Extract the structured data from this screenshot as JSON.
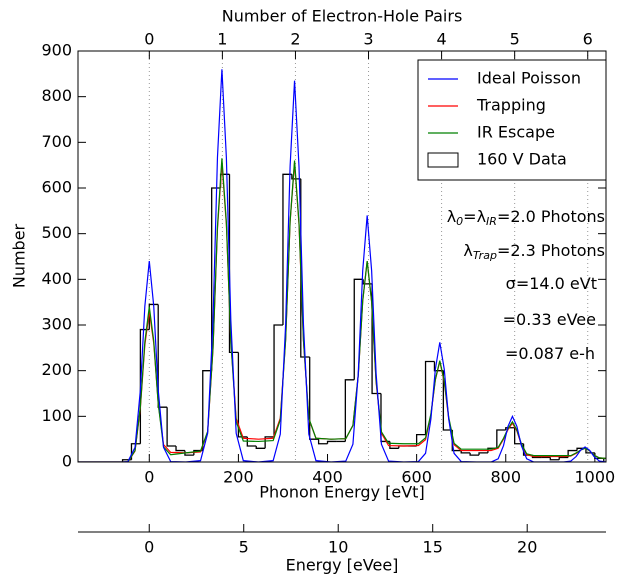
{
  "chart_data": {
    "type": "line",
    "xlabel": "Phonon Energy [eVt]",
    "ylabel": "Number",
    "xlim": [
      -160,
      1025
    ],
    "xticks": [
      0,
      200,
      400,
      600,
      800,
      1000
    ],
    "ylim": [
      0,
      900
    ],
    "yticks": [
      0,
      100,
      200,
      300,
      400,
      500,
      600,
      700,
      800,
      900
    ],
    "x2label": "Number of Electron-Hole Pairs",
    "x2lim": [
      -0.976,
      6.25
    ],
    "x2ticks": [
      0,
      1,
      2,
      3,
      4,
      5,
      6
    ],
    "x2grid": true,
    "x3label": "Energy [eVee]",
    "x3lim": [
      -3.77,
      24.17
    ],
    "x3ticks": [
      0,
      5,
      10,
      15,
      20
    ],
    "legend": "upper right",
    "x": [
      -160,
      -60,
      -48,
      -32,
      -20,
      -10,
      0,
      10,
      20,
      32,
      48,
      82,
      115,
      131,
      143,
      153,
      163,
      173,
      183,
      195,
      211,
      245,
      278,
      294,
      306,
      316,
      326,
      336,
      346,
      358,
      374,
      408,
      441,
      457,
      469,
      479,
      489,
      499,
      509,
      521,
      537,
      571,
      604,
      620,
      632,
      642,
      652,
      662,
      672,
      684,
      700,
      734,
      767,
      783,
      795,
      805,
      815,
      825,
      835,
      847,
      863,
      897,
      930,
      946,
      958,
      968,
      978,
      988,
      998,
      1010,
      1025
    ],
    "series": [
      {
        "name": "Ideal Poisson",
        "color": "#0000ff",
        "values": [
          0,
          0,
          1,
          32,
          158,
          341,
          440,
          341,
          158,
          32,
          1,
          0,
          3,
          63,
          310,
          667,
          860,
          667,
          310,
          63,
          3,
          0,
          3,
          61,
          301,
          647,
          835,
          647,
          301,
          61,
          3,
          0,
          2,
          39,
          194,
          419,
          540,
          419,
          194,
          39,
          2,
          0,
          1,
          19,
          94,
          203,
          262,
          203,
          94,
          19,
          1,
          0,
          0,
          7,
          36,
          78,
          100,
          78,
          36,
          7,
          0,
          0,
          0,
          2,
          12,
          26,
          33,
          26,
          12,
          2,
          0
        ]
      },
      {
        "name": "Trapping",
        "color": "#ff0000",
        "values": [
          0,
          0,
          0,
          24,
          119,
          256,
          330,
          260,
          129,
          38,
          21,
          20,
          22,
          66,
          248,
          510,
          655,
          520,
          265,
          95,
          52,
          50,
          52,
          96,
          269,
          525,
          655,
          520,
          265,
          95,
          52,
          50,
          51,
          80,
          190,
          353,
          440,
          350,
          175,
          63,
          36,
          35,
          36,
          49,
          103,
          180,
          220,
          175,
          95,
          38,
          25,
          25,
          25,
          30,
          50,
          71,
          85,
          68,
          38,
          16,
          12,
          12,
          12,
          13,
          19,
          26,
          30,
          25,
          15,
          9,
          8
        ]
      },
      {
        "name": "IR Escape",
        "color": "#008000",
        "values": [
          0,
          0,
          0,
          25,
          122,
          263,
          340,
          265,
          128,
          33,
          16,
          20,
          24,
          67,
          250,
          516,
          665,
          525,
          264,
          88,
          46,
          45,
          47,
          92,
          268,
          527,
          660,
          525,
          267,
          96,
          52,
          50,
          51,
          80,
          190,
          353,
          440,
          352,
          178,
          66,
          41,
          40,
          40,
          53,
          105,
          181,
          222,
          178,
          98,
          41,
          28,
          28,
          28,
          32,
          52,
          73,
          88,
          70,
          40,
          18,
          14,
          14,
          14,
          14,
          20,
          26,
          30,
          25,
          15,
          9,
          8
        ]
      }
    ],
    "histogram": {
      "name": "160 V Data",
      "color": "#000000",
      "bins": [
        -60,
        -40,
        -20,
        0,
        20,
        40,
        60,
        80,
        100,
        120,
        140,
        160,
        180,
        200,
        220,
        240,
        260,
        280,
        300,
        320,
        340,
        360,
        380,
        400,
        420,
        440,
        460,
        480,
        500,
        520,
        540,
        560,
        580,
        600,
        620,
        640,
        660,
        680,
        700,
        720,
        740,
        760,
        780,
        800,
        820,
        840,
        860,
        880,
        900,
        920,
        940,
        960,
        980,
        1000,
        1020
      ],
      "counts": [
        5,
        40,
        290,
        345,
        120,
        35,
        25,
        15,
        25,
        200,
        600,
        630,
        240,
        55,
        35,
        30,
        55,
        300,
        630,
        620,
        230,
        50,
        40,
        45,
        45,
        180,
        400,
        390,
        150,
        45,
        30,
        35,
        35,
        60,
        220,
        200,
        70,
        25,
        20,
        15,
        20,
        30,
        70,
        75,
        40,
        15,
        10,
        10,
        5,
        10,
        25,
        30,
        20,
        8
      ]
    },
    "annotations": [
      [
        "λ",
        "0",
        "=λ",
        "IR",
        "=2.0 Photons"
      ],
      [
        "λ",
        "Trap",
        "=2.3 Photons"
      ],
      [
        "σ=14.0 eVt"
      ],
      [
        "=0.33 eVee"
      ],
      [
        "=0.087 e-h"
      ]
    ]
  }
}
